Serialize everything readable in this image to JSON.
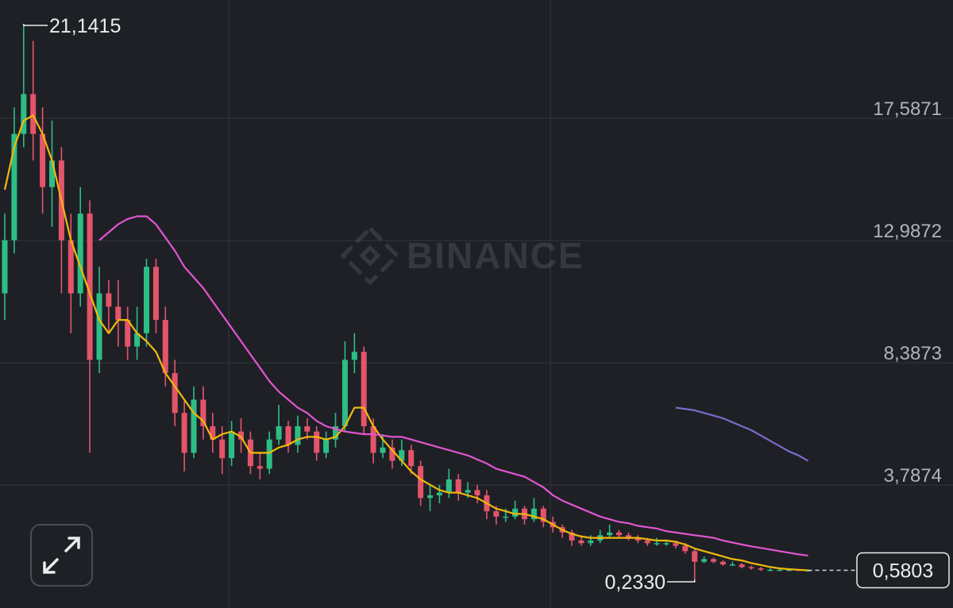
{
  "chart_data": {
    "type": "candlestick",
    "watermark": "BINANCE",
    "ylim": [
      -0.84,
      22.04
    ],
    "yticks": [
      {
        "value": 3.7874,
        "label": "3,7874"
      },
      {
        "value": 8.3873,
        "label": "8,3873"
      },
      {
        "value": 12.9872,
        "label": "12,9872"
      },
      {
        "value": 17.5871,
        "label": "17,5871"
      }
    ],
    "grid": true,
    "up_color": "#2ebd85",
    "down_color": "#e4556a",
    "max_label": "21,1415",
    "min_label": "0,2330",
    "last_label": "0,5803",
    "open": [
      11,
      13,
      17,
      18.5,
      17,
      15,
      16,
      13,
      11,
      14,
      8.5,
      11,
      10.5,
      10,
      9,
      9.5,
      12,
      10,
      8,
      6.5,
      5,
      7,
      6,
      5.5,
      4.8,
      5.8,
      5.5,
      4.5,
      4.4,
      5.5,
      6,
      5.3,
      6,
      5.8,
      5,
      5.5,
      6,
      8.5,
      8.8,
      6,
      5,
      5.2,
      4.7,
      5.1,
      4.5,
      3.3,
      3.4,
      3.5,
      4,
      3.5,
      3.6,
      3.4,
      2.8,
      2.6,
      2.6,
      2.9,
      2.5,
      2.9,
      2.4,
      2.2,
      2,
      1.7,
      1.6,
      1.7,
      1.9,
      2,
      1.9,
      1.8,
      1.7,
      1.6,
      1.6,
      1.6,
      1.5,
      1.3,
      0.9,
      1,
      0.9,
      0.8,
      0.8,
      0.7,
      0.65,
      0.6,
      0.6,
      0.6,
      0.6,
      0.58
    ],
    "high": [
      14,
      18,
      21.1415,
      20.5,
      18,
      17.5,
      16.5,
      14,
      15,
      14.5,
      12,
      11.5,
      11.5,
      10.5,
      10.5,
      12.3,
      12.3,
      10.5,
      8.5,
      7,
      7.5,
      7.5,
      6.5,
      6,
      6.2,
      6.3,
      5.8,
      5,
      5.8,
      6.8,
      6.2,
      6.4,
      6.3,
      6,
      5.8,
      6.5,
      9.2,
      9.5,
      9,
      6.3,
      5.7,
      5.5,
      5.5,
      5.3,
      4.7,
      3.8,
      3.8,
      4.4,
      4.2,
      3.9,
      3.8,
      3.6,
      3,
      2.9,
      3.2,
      3,
      3.3,
      3,
      2.6,
      2.3,
      2.1,
      1.9,
      1.9,
      2.1,
      2.3,
      2.1,
      2,
      1.9,
      1.8,
      1.8,
      1.7,
      1.7,
      1.6,
      1.4,
      1.1,
      1.05,
      0.95,
      0.9,
      0.85,
      0.75,
      0.7,
      0.65,
      0.65,
      0.65,
      0.62,
      0.6
    ],
    "low": [
      10,
      12.5,
      16.5,
      16,
      14,
      13.5,
      11,
      9.5,
      10.5,
      5,
      8,
      9.5,
      9,
      8.5,
      8.5,
      9,
      9.5,
      7.5,
      6,
      4.3,
      4.8,
      5.5,
      5,
      4.2,
      4.5,
      5,
      4.2,
      4,
      4.2,
      5.3,
      5,
      5,
      5.5,
      4.7,
      4.8,
      5.2,
      5.8,
      8,
      5.7,
      4.6,
      4.8,
      4.4,
      4.5,
      4.2,
      3,
      2.8,
      3.1,
      3.3,
      3.2,
      3.3,
      3.1,
      2.5,
      2.3,
      2.4,
      2.5,
      2.3,
      2.4,
      2.2,
      2,
      1.8,
      1.5,
      1.5,
      1.5,
      1.6,
      1.8,
      1.8,
      1.7,
      1.6,
      1.5,
      1.5,
      1.5,
      1.4,
      1.2,
      0.233,
      0.85,
      0.85,
      0.75,
      0.75,
      0.65,
      0.6,
      0.55,
      0.55,
      0.55,
      0.55,
      0.55,
      0.56
    ],
    "close": [
      13,
      17,
      18.5,
      17,
      15,
      16,
      13,
      11,
      14,
      8.5,
      11,
      10.5,
      10,
      9,
      9.5,
      12,
      10,
      8,
      6.5,
      5,
      7,
      6,
      5.5,
      4.8,
      5.8,
      5.5,
      4.5,
      4.4,
      5.5,
      6,
      5.3,
      6,
      5.8,
      5,
      5.5,
      6,
      8.5,
      8.8,
      6,
      5,
      5.2,
      4.7,
      5.1,
      4.5,
      3.3,
      3.4,
      3.5,
      4,
      3.5,
      3.6,
      3.4,
      2.8,
      2.6,
      2.6,
      2.9,
      2.5,
      2.9,
      2.4,
      2.2,
      2,
      1.7,
      1.6,
      1.7,
      1.9,
      2,
      1.9,
      1.8,
      1.7,
      1.6,
      1.6,
      1.6,
      1.5,
      1.3,
      0.9,
      1,
      0.9,
      0.8,
      0.8,
      0.7,
      0.65,
      0.6,
      0.6,
      0.6,
      0.6,
      0.58,
      0.5803
    ],
    "series": [
      {
        "color": "#f0b90b",
        "values": [
          14.9,
          16.5,
          17.5,
          17.7,
          17,
          16,
          14.5,
          13,
          12,
          11,
          10,
          9.5,
          10,
          10,
          9.5,
          9.2,
          8.8,
          8,
          7.5,
          7,
          6.5,
          6.2,
          5.5,
          5.7,
          5.8,
          5.6,
          5,
          5,
          5,
          5.2,
          5.3,
          5.5,
          5.6,
          5.6,
          5.5,
          5.6,
          6,
          6.7,
          6.7,
          6,
          5.5,
          5.1,
          4.7,
          4.3,
          4,
          3.8,
          3.6,
          3.5,
          3.5,
          3.4,
          3.3,
          3.1,
          2.9,
          2.8,
          2.7,
          2.7,
          2.6,
          2.5,
          2.3,
          2.1,
          1.95,
          1.85,
          1.8,
          1.8,
          1.8,
          1.8,
          1.8,
          1.8,
          1.75,
          1.7,
          1.7,
          1.65,
          1.55,
          1.4,
          1.3,
          1.2,
          1.1,
          1,
          0.95,
          0.85,
          0.78,
          0.7,
          0.65,
          0.62,
          0.6,
          0.58
        ]
      },
      {
        "color": "#e255cf",
        "values": [
          null,
          null,
          null,
          null,
          null,
          null,
          null,
          null,
          null,
          null,
          13,
          13.3,
          13.6,
          13.8,
          13.9,
          13.9,
          13.6,
          13.1,
          12.6,
          12,
          11.6,
          11.2,
          10.7,
          10.2,
          9.7,
          9.2,
          8.7,
          8.2,
          7.7,
          7.3,
          7,
          6.7,
          6.5,
          6.2,
          6,
          5.9,
          5.8,
          5.75,
          5.7,
          5.7,
          5.65,
          5.6,
          5.6,
          5.5,
          5.4,
          5.3,
          5.2,
          5.1,
          5,
          4.9,
          4.75,
          4.6,
          4.4,
          4.3,
          4.2,
          4.1,
          3.9,
          3.7,
          3.4,
          3.2,
          3.05,
          2.9,
          2.75,
          2.6,
          2.5,
          2.4,
          2.35,
          2.25,
          2.2,
          2.15,
          2.05,
          2,
          1.95,
          1.9,
          1.85,
          1.8,
          1.7,
          1.62,
          1.55,
          1.48,
          1.42,
          1.36,
          1.3,
          1.24,
          1.18,
          1.13
        ]
      },
      {
        "color": "#7b6ccc",
        "values": [
          null,
          null,
          null,
          null,
          null,
          null,
          null,
          null,
          null,
          null,
          null,
          null,
          null,
          null,
          null,
          null,
          null,
          null,
          null,
          null,
          null,
          null,
          null,
          null,
          null,
          null,
          null,
          null,
          null,
          null,
          null,
          null,
          null,
          null,
          null,
          null,
          null,
          null,
          null,
          null,
          null,
          null,
          null,
          null,
          null,
          null,
          null,
          null,
          null,
          null,
          null,
          null,
          null,
          null,
          null,
          null,
          null,
          null,
          null,
          null,
          null,
          null,
          null,
          null,
          null,
          null,
          null,
          null,
          null,
          null,
          null,
          6.7,
          6.65,
          6.6,
          6.5,
          6.4,
          6.3,
          6.15,
          6,
          5.85,
          5.65,
          5.45,
          5.25,
          5.05,
          4.9,
          4.7
        ]
      }
    ]
  }
}
